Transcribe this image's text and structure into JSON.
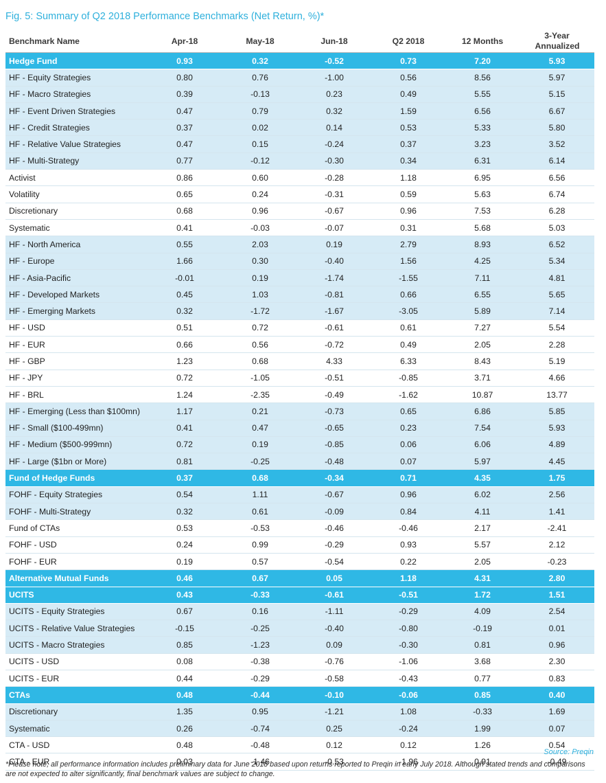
{
  "title": "Fig. 5: Summary of Q2 2018 Performance Benchmarks (Net Return, %)*",
  "columns": [
    "Benchmark Name",
    "Apr-18",
    "May-18",
    "Jun-18",
    "Q2 2018",
    "12 Months",
    "3-Year Annualized"
  ],
  "rows": [
    {
      "style": "header",
      "cells": [
        "Hedge Fund",
        "0.93",
        "0.32",
        "-0.52",
        "0.73",
        "7.20",
        "5.93"
      ]
    },
    {
      "style": "light",
      "cells": [
        "HF - Equity Strategies",
        "0.80",
        "0.76",
        "-1.00",
        "0.56",
        "8.56",
        "5.97"
      ]
    },
    {
      "style": "light",
      "cells": [
        "HF - Macro Strategies",
        "0.39",
        "-0.13",
        "0.23",
        "0.49",
        "5.55",
        "5.15"
      ]
    },
    {
      "style": "light",
      "cells": [
        "HF - Event Driven Strategies",
        "0.47",
        "0.79",
        "0.32",
        "1.59",
        "6.56",
        "6.67"
      ]
    },
    {
      "style": "light",
      "cells": [
        "HF - Credit Strategies",
        "0.37",
        "0.02",
        "0.14",
        "0.53",
        "5.33",
        "5.80"
      ]
    },
    {
      "style": "light",
      "cells": [
        "HF - Relative Value Strategies",
        "0.47",
        "0.15",
        "-0.24",
        "0.37",
        "3.23",
        "3.52"
      ]
    },
    {
      "style": "light",
      "cells": [
        "HF - Multi-Strategy",
        "0.77",
        "-0.12",
        "-0.30",
        "0.34",
        "6.31",
        "6.14"
      ]
    },
    {
      "style": "white",
      "cells": [
        "Activist",
        "0.86",
        "0.60",
        "-0.28",
        "1.18",
        "6.95",
        "6.56"
      ]
    },
    {
      "style": "white",
      "cells": [
        "Volatility",
        "0.65",
        "0.24",
        "-0.31",
        "0.59",
        "5.63",
        "6.74"
      ]
    },
    {
      "style": "white",
      "cells": [
        "Discretionary",
        "0.68",
        "0.96",
        "-0.67",
        "0.96",
        "7.53",
        "6.28"
      ]
    },
    {
      "style": "white",
      "cells": [
        "Systematic",
        "0.41",
        "-0.03",
        "-0.07",
        "0.31",
        "5.68",
        "5.03"
      ]
    },
    {
      "style": "light",
      "cells": [
        "HF - North America",
        "0.55",
        "2.03",
        "0.19",
        "2.79",
        "8.93",
        "6.52"
      ]
    },
    {
      "style": "light",
      "cells": [
        "HF - Europe",
        "1.66",
        "0.30",
        "-0.40",
        "1.56",
        "4.25",
        "5.34"
      ]
    },
    {
      "style": "light",
      "cells": [
        "HF - Asia-Pacific",
        "-0.01",
        "0.19",
        "-1.74",
        "-1.55",
        "7.11",
        "4.81"
      ]
    },
    {
      "style": "light",
      "cells": [
        "HF - Developed Markets",
        "0.45",
        "1.03",
        "-0.81",
        "0.66",
        "6.55",
        "5.65"
      ]
    },
    {
      "style": "light",
      "cells": [
        "HF - Emerging Markets",
        "0.32",
        "-1.72",
        "-1.67",
        "-3.05",
        "5.89",
        "7.14"
      ]
    },
    {
      "style": "white",
      "cells": [
        "HF - USD",
        "0.51",
        "0.72",
        "-0.61",
        "0.61",
        "7.27",
        "5.54"
      ]
    },
    {
      "style": "white",
      "cells": [
        "HF - EUR",
        "0.66",
        "0.56",
        "-0.72",
        "0.49",
        "2.05",
        "2.28"
      ]
    },
    {
      "style": "white",
      "cells": [
        "HF - GBP",
        "1.23",
        "0.68",
        "4.33",
        "6.33",
        "8.43",
        "5.19"
      ]
    },
    {
      "style": "white",
      "cells": [
        "HF - JPY",
        "0.72",
        "-1.05",
        "-0.51",
        "-0.85",
        "3.71",
        "4.66"
      ]
    },
    {
      "style": "white",
      "cells": [
        "HF - BRL",
        "1.24",
        "-2.35",
        "-0.49",
        "-1.62",
        "10.87",
        "13.77"
      ]
    },
    {
      "style": "light",
      "cells": [
        "HF - Emerging (Less than $100mn)",
        "1.17",
        "0.21",
        "-0.73",
        "0.65",
        "6.86",
        "5.85"
      ]
    },
    {
      "style": "light",
      "cells": [
        "HF - Small ($100-499mn)",
        "0.41",
        "0.47",
        "-0.65",
        "0.23",
        "7.54",
        "5.93"
      ]
    },
    {
      "style": "light",
      "cells": [
        "HF - Medium ($500-999mn)",
        "0.72",
        "0.19",
        "-0.85",
        "0.06",
        "6.06",
        "4.89"
      ]
    },
    {
      "style": "light",
      "cells": [
        "HF - Large ($1bn or More)",
        "0.81",
        "-0.25",
        "-0.48",
        "0.07",
        "5.97",
        "4.45"
      ]
    },
    {
      "style": "header",
      "cells": [
        "Fund of Hedge Funds",
        "0.37",
        "0.68",
        "-0.34",
        "0.71",
        "4.35",
        "1.75"
      ]
    },
    {
      "style": "light",
      "cells": [
        "FOHF - Equity Strategies",
        "0.54",
        "1.11",
        "-0.67",
        "0.96",
        "6.02",
        "2.56"
      ]
    },
    {
      "style": "light",
      "cells": [
        "FOHF - Multi-Strategy",
        "0.32",
        "0.61",
        "-0.09",
        "0.84",
        "4.11",
        "1.41"
      ]
    },
    {
      "style": "white",
      "cells": [
        "Fund of CTAs",
        "0.53",
        "-0.53",
        "-0.46",
        "-0.46",
        "2.17",
        "-2.41"
      ]
    },
    {
      "style": "white",
      "cells": [
        "FOHF - USD",
        "0.24",
        "0.99",
        "-0.29",
        "0.93",
        "5.57",
        "2.12"
      ]
    },
    {
      "style": "white",
      "cells": [
        "FOHF - EUR",
        "0.19",
        "0.57",
        "-0.54",
        "0.22",
        "2.05",
        "-0.23"
      ]
    },
    {
      "style": "header",
      "cells": [
        "Alternative Mutual Funds",
        "0.46",
        "0.67",
        "0.05",
        "1.18",
        "4.31",
        "2.80"
      ]
    },
    {
      "style": "header",
      "cells": [
        "UCITS",
        "0.43",
        "-0.33",
        "-0.61",
        "-0.51",
        "1.72",
        "1.51"
      ]
    },
    {
      "style": "light",
      "cells": [
        "UCITS - Equity Strategies",
        "0.67",
        "0.16",
        "-1.11",
        "-0.29",
        "4.09",
        "2.54"
      ]
    },
    {
      "style": "light",
      "cells": [
        "UCITS - Relative Value Strategies",
        "-0.15",
        "-0.25",
        "-0.40",
        "-0.80",
        "-0.19",
        "0.01"
      ]
    },
    {
      "style": "light",
      "cells": [
        "UCITS - Macro Strategies",
        "0.85",
        "-1.23",
        "0.09",
        "-0.30",
        "0.81",
        "0.96"
      ]
    },
    {
      "style": "white",
      "cells": [
        "UCITS - USD",
        "0.08",
        "-0.38",
        "-0.76",
        "-1.06",
        "3.68",
        "2.30"
      ]
    },
    {
      "style": "white",
      "cells": [
        "UCITS - EUR",
        "0.44",
        "-0.29",
        "-0.58",
        "-0.43",
        "0.77",
        "0.83"
      ]
    },
    {
      "style": "header",
      "cells": [
        "CTAs",
        "0.48",
        "-0.44",
        "-0.10",
        "-0.06",
        "0.85",
        "0.40"
      ]
    },
    {
      "style": "light",
      "cells": [
        "Discretionary",
        "1.35",
        "0.95",
        "-1.21",
        "1.08",
        "-0.33",
        "1.69"
      ]
    },
    {
      "style": "light",
      "cells": [
        "Systematic",
        "0.26",
        "-0.74",
        "0.25",
        "-0.24",
        "1.99",
        "0.07"
      ]
    },
    {
      "style": "white",
      "cells": [
        "CTA - USD",
        "0.48",
        "-0.48",
        "0.12",
        "0.12",
        "1.26",
        "0.54"
      ]
    },
    {
      "style": "white",
      "cells": [
        "CTA - EUR",
        "0.03",
        "-1.46",
        "-0.53",
        "-1.96",
        "0.91",
        "-0.49"
      ]
    }
  ],
  "source": "Source: Preqin",
  "footnote": "*Please note, all performance information includes preliminary data for June 2018 based upon returns reported to Preqin in early July 2018. Although stated trends and comparisons are not expected to alter significantly, final benchmark values are subject to change.",
  "colors": {
    "accent": "#2fb8e5",
    "band": "#d6ebf6",
    "title": "#2fb0dc"
  }
}
